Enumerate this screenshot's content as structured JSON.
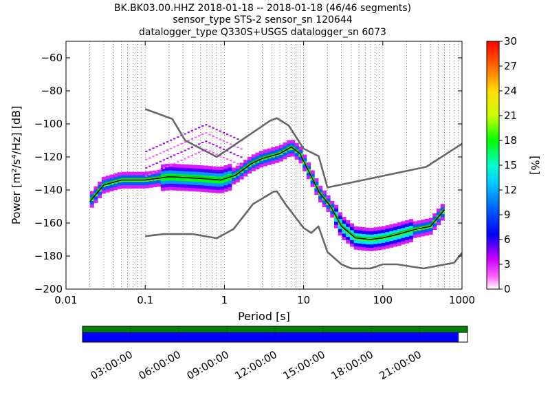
{
  "title_lines": [
    "BK.BK03.00.HHZ   2018-01-18 -- 2018-01-18  (46/46 segments)",
    "sensor_type STS-2 sensor_sn 120644",
    "datalogger_type Q330S+USGS datalogger_sn 6073"
  ],
  "chart_data": {
    "type": "heatmap",
    "xlabel": "Period [s]",
    "ylabel": "Power [m²/s⁴/Hz] [dB]",
    "x_scale": "log",
    "xlim": [
      0.01,
      1000
    ],
    "ylim": [
      -200,
      -50
    ],
    "xticks": [
      {
        "value": 0.01,
        "label": "0.01"
      },
      {
        "value": 0.1,
        "label": "0.1"
      },
      {
        "value": 1,
        "label": "1"
      },
      {
        "value": 10,
        "label": "10"
      },
      {
        "value": 100,
        "label": "100"
      },
      {
        "value": 1000,
        "label": "1000"
      }
    ],
    "yticks": [
      {
        "value": -60,
        "label": "−60"
      },
      {
        "value": -80,
        "label": "−80"
      },
      {
        "value": -100,
        "label": "−100"
      },
      {
        "value": -120,
        "label": "−120"
      },
      {
        "value": -140,
        "label": "−140"
      },
      {
        "value": -160,
        "label": "−160"
      },
      {
        "value": -180,
        "label": "−180"
      },
      {
        "value": -200,
        "label": "−200"
      }
    ],
    "grid": "dotted vertical lines at log-spaced periods",
    "colorbar": {
      "label": "[%]",
      "range": [
        0,
        30
      ],
      "ticks": [
        0,
        3,
        6,
        9,
        12,
        15,
        18,
        21,
        24,
        27,
        30
      ],
      "colormap": "pqlx"
    },
    "noise_models": [
      {
        "name": "high",
        "color": "#666666",
        "points": [
          [
            0.1,
            -91
          ],
          [
            0.22,
            -97
          ],
          [
            0.32,
            -110
          ],
          [
            0.8,
            -120
          ],
          [
            3.8,
            -98
          ],
          [
            4.6,
            -96.5
          ],
          [
            6.5,
            -101
          ],
          [
            10,
            -115
          ],
          [
            15.5,
            -119.5
          ],
          [
            20,
            -138.5
          ],
          [
            354,
            -126
          ],
          [
            1000,
            -112
          ]
        ]
      },
      {
        "name": "low",
        "color": "#666666",
        "points": [
          [
            0.1,
            -168
          ],
          [
            0.17,
            -166.7
          ],
          [
            0.4,
            -166.7
          ],
          [
            0.8,
            -169.2
          ],
          [
            1.3,
            -163.7
          ],
          [
            2.3,
            -148.5
          ],
          [
            4.2,
            -141
          ],
          [
            4.6,
            -140.8
          ],
          [
            6,
            -149
          ],
          [
            10,
            -163
          ],
          [
            12.5,
            -166
          ],
          [
            15.4,
            -162
          ],
          [
            20,
            -177.5
          ],
          [
            30,
            -185
          ],
          [
            40,
            -187.5
          ],
          [
            70,
            -187.5
          ],
          [
            100,
            -185
          ],
          [
            150,
            -185
          ],
          [
            328,
            -187.5
          ],
          [
            800,
            -184
          ],
          [
            1000,
            -178
          ]
        ]
      }
    ],
    "mean_curve": {
      "color": "#000000",
      "points": [
        [
          0.02,
          -147
        ],
        [
          0.03,
          -137
        ],
        [
          0.05,
          -134
        ],
        [
          0.1,
          -134
        ],
        [
          0.2,
          -132
        ],
        [
          0.5,
          -133
        ],
        [
          0.9,
          -134
        ],
        [
          1.4,
          -131
        ],
        [
          2.2,
          -124
        ],
        [
          3,
          -121
        ],
        [
          5,
          -118
        ],
        [
          7,
          -114
        ],
        [
          9,
          -118
        ],
        [
          12,
          -130
        ],
        [
          16,
          -142
        ],
        [
          22,
          -150
        ],
        [
          30,
          -162
        ],
        [
          45,
          -169
        ],
        [
          70,
          -170
        ],
        [
          100,
          -169
        ],
        [
          150,
          -167
        ],
        [
          250,
          -164
        ],
        [
          400,
          -162
        ],
        [
          600,
          -152
        ]
      ]
    },
    "mode_curve": {
      "color": "#00cc00",
      "points": [
        [
          0.02,
          -146
        ],
        [
          0.03,
          -136
        ],
        [
          0.05,
          -133
        ],
        [
          0.1,
          -133
        ],
        [
          0.2,
          -131
        ],
        [
          0.5,
          -132
        ],
        [
          0.9,
          -133
        ],
        [
          1.4,
          -130
        ],
        [
          2.2,
          -123
        ],
        [
          3,
          -120
        ],
        [
          5,
          -117
        ],
        [
          7,
          -113
        ],
        [
          9,
          -117
        ],
        [
          12,
          -129
        ],
        [
          16,
          -141
        ],
        [
          22,
          -149
        ],
        [
          30,
          -161
        ],
        [
          45,
          -168
        ],
        [
          70,
          -169
        ],
        [
          100,
          -168
        ],
        [
          150,
          -166
        ],
        [
          250,
          -163
        ],
        [
          400,
          -161
        ],
        [
          600,
          -151
        ]
      ]
    }
  },
  "timeline": {
    "labels": [
      "03:00:00",
      "06:00:00",
      "09:00:00",
      "12:00:00",
      "15:00:00",
      "18:00:00",
      "21:00:00"
    ],
    "coverage_fraction": 0.977,
    "top_bar_color": "#008000",
    "coverage_color": "#0000ff"
  }
}
